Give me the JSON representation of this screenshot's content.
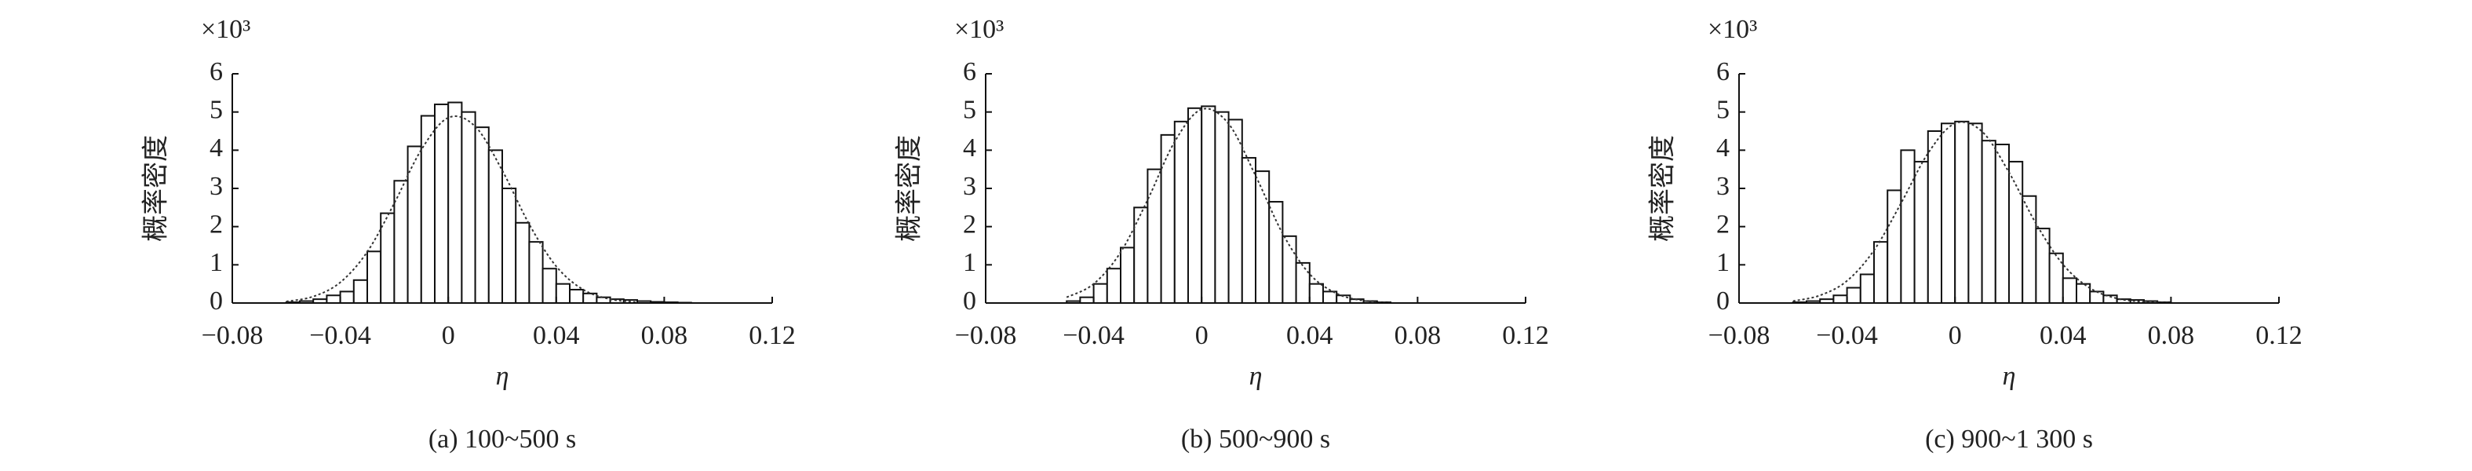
{
  "chart_data": [
    {
      "type": "histogram",
      "caption": "(a) 100~500 s",
      "xlabel": "η",
      "ylabel": "概率密度",
      "multiplier": "×10³",
      "bins": [
        -0.06,
        -0.055,
        -0.05,
        -0.045,
        -0.04,
        -0.035,
        -0.03,
        -0.025,
        -0.02,
        -0.015,
        -0.01,
        -0.005,
        0,
        0.005,
        0.01,
        0.015,
        0.02,
        0.025,
        0.03,
        0.035,
        0.04,
        0.045,
        0.05,
        0.055,
        0.06,
        0.065,
        0.07,
        0.075,
        0.08,
        0.085,
        0.09
      ],
      "values": [
        0.02,
        0.05,
        0.1,
        0.2,
        0.3,
        0.6,
        1.35,
        2.35,
        3.2,
        4.1,
        4.9,
        5.2,
        5.25,
        5.0,
        4.6,
        4.0,
        3.0,
        2.1,
        1.6,
        0.9,
        0.5,
        0.35,
        0.25,
        0.15,
        0.1,
        0.08,
        0.05,
        0.03,
        0.02,
        0.01
      ],
      "curve": {
        "x": [
          -0.06,
          -0.05,
          -0.04,
          -0.03,
          -0.02,
          -0.01,
          0,
          0.01,
          0.02,
          0.03,
          0.04,
          0.05,
          0.06,
          0.07
        ],
        "values": [
          0.04,
          0.17,
          0.54,
          1.34,
          2.61,
          4.01,
          4.85,
          4.62,
          3.47,
          2.06,
          0.96,
          0.35,
          0.1,
          0.02
        ]
      },
      "xlim": [
        -0.08,
        0.12
      ],
      "xticks": [
        {
          "value": -0.08,
          "label": "−0.08"
        },
        {
          "value": -0.04,
          "label": "−0.04"
        },
        0,
        0.04,
        0.08,
        0.12
      ],
      "ylim": [
        0,
        6
      ],
      "yticks": [
        0,
        1,
        2,
        3,
        4,
        5,
        6
      ]
    },
    {
      "type": "histogram",
      "caption": "(b) 500~900 s",
      "xlabel": "η",
      "ylabel": "概率密度",
      "multiplier": "×10³",
      "bins": [
        -0.05,
        -0.045,
        -0.04,
        -0.035,
        -0.03,
        -0.025,
        -0.02,
        -0.015,
        -0.01,
        -0.005,
        0,
        0.005,
        0.01,
        0.015,
        0.02,
        0.025,
        0.03,
        0.035,
        0.04,
        0.045,
        0.05,
        0.055,
        0.06,
        0.065,
        0.07
      ],
      "values": [
        0.05,
        0.15,
        0.5,
        0.9,
        1.45,
        2.5,
        3.5,
        4.4,
        4.75,
        5.1,
        5.15,
        5.0,
        4.8,
        3.8,
        3.45,
        2.65,
        1.75,
        1.05,
        0.5,
        0.3,
        0.2,
        0.1,
        0.05,
        0.02
      ],
      "curve": {
        "x": [
          -0.05,
          -0.04,
          -0.03,
          -0.02,
          -0.01,
          0,
          0.01,
          0.02,
          0.03,
          0.04,
          0.05,
          0.06,
          0.07
        ],
        "values": [
          0.15,
          0.5,
          1.33,
          2.7,
          4.22,
          5.07,
          4.69,
          3.33,
          1.82,
          0.76,
          0.25,
          0.06,
          0.01
        ]
      },
      "xlim": [
        -0.08,
        0.12
      ],
      "xticks": [
        {
          "value": -0.08,
          "label": "−0.08"
        },
        {
          "value": -0.04,
          "label": "−0.04"
        },
        0,
        0.04,
        0.08,
        0.12
      ],
      "ylim": [
        0,
        6
      ],
      "yticks": [
        0,
        1,
        2,
        3,
        4,
        5,
        6
      ]
    },
    {
      "type": "histogram",
      "caption": "(c) 900~1 300 s",
      "xlabel": "η",
      "ylabel": "概率密度",
      "multiplier": "×10³",
      "bins": [
        -0.06,
        -0.055,
        -0.05,
        -0.045,
        -0.04,
        -0.035,
        -0.03,
        -0.025,
        -0.02,
        -0.015,
        -0.01,
        -0.005,
        0,
        0.005,
        0.01,
        0.015,
        0.02,
        0.025,
        0.03,
        0.035,
        0.04,
        0.045,
        0.05,
        0.055,
        0.06,
        0.065,
        0.07,
        0.075,
        0.08
      ],
      "values": [
        0.02,
        0.05,
        0.1,
        0.2,
        0.4,
        0.75,
        1.6,
        2.95,
        4.0,
        3.7,
        4.5,
        4.7,
        4.75,
        4.7,
        4.25,
        4.15,
        3.7,
        2.8,
        1.95,
        1.3,
        0.65,
        0.5,
        0.3,
        0.2,
        0.1,
        0.08,
        0.05,
        0.02
      ],
      "curve": {
        "x": [
          -0.06,
          -0.05,
          -0.04,
          -0.03,
          -0.02,
          -0.01,
          0,
          0.01,
          0.02,
          0.03,
          0.04,
          0.05,
          0.06,
          0.07,
          0.08
        ],
        "values": [
          0.05,
          0.2,
          0.58,
          1.38,
          2.61,
          3.92,
          4.7,
          4.49,
          3.42,
          2.08,
          1.01,
          0.39,
          0.12,
          0.03,
          0.01
        ]
      },
      "xlim": [
        -0.08,
        0.12
      ],
      "xticks": [
        {
          "value": -0.08,
          "label": "−0.08"
        },
        {
          "value": -0.04,
          "label": "−0.04"
        },
        0,
        0.04,
        0.08,
        0.12
      ],
      "ylim": [
        0,
        6
      ],
      "yticks": [
        0,
        1,
        2,
        3,
        4,
        5,
        6
      ]
    }
  ]
}
